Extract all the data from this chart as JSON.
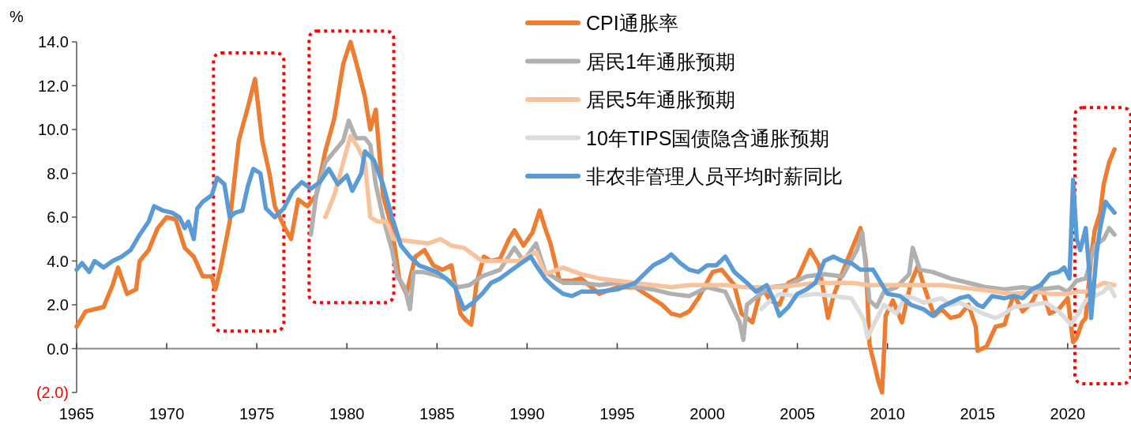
{
  "chart_data": {
    "type": "line",
    "ylabel": "%",
    "xlim": [
      1965,
      2022.9
    ],
    "ylim": [
      -2,
      14
    ],
    "xticks": [
      1965,
      1970,
      1975,
      1980,
      1985,
      1990,
      1995,
      2000,
      2005,
      2010,
      2015,
      2020
    ],
    "yticks": [
      {
        "value": -2,
        "label": "(2.0)"
      },
      {
        "value": 0,
        "label": "0.0"
      },
      {
        "value": 2,
        "label": "2.0"
      },
      {
        "value": 4,
        "label": "4.0"
      },
      {
        "value": 6,
        "label": "6.0"
      },
      {
        "value": 8,
        "label": "8.0"
      },
      {
        "value": 10,
        "label": "10.0"
      },
      {
        "value": 12,
        "label": "12.0"
      },
      {
        "value": 14,
        "label": "14.0"
      }
    ],
    "legend": "top",
    "line_style": "solid",
    "series": [
      {
        "name": "CPI通胀率",
        "color": "#ed7d31",
        "x": [
          1965,
          1965.5,
          1966.5,
          1967,
          1967.3,
          1967.8,
          1968.3,
          1968.5,
          1969,
          1969.5,
          1970,
          1970.5,
          1971,
          1971.5,
          1972,
          1972.5,
          1972.7,
          1973,
          1973.5,
          1974,
          1974.5,
          1974.9,
          1975.3,
          1975.7,
          1976,
          1976.5,
          1976.9,
          1977.3,
          1977.8,
          1978.3,
          1978.8,
          1979.3,
          1979.8,
          1980.2,
          1980.6,
          1981,
          1981.3,
          1981.6,
          1982,
          1982.5,
          1982.9,
          1983.3,
          1983.8,
          1984.3,
          1984.8,
          1985.3,
          1985.8,
          1986.3,
          1986.6,
          1986.9,
          1987.2,
          1987.6,
          1988,
          1988.5,
          1989,
          1989.3,
          1989.8,
          1990.3,
          1990.7,
          1991,
          1991.3,
          1991.8,
          1992.5,
          1993,
          1994,
          1995,
          1996,
          1997.5,
          1998,
          1998.5,
          1999,
          1999.5,
          2000.3,
          2000.8,
          2001.5,
          2001.9,
          2002.5,
          2003,
          2003.5,
          2004,
          2004.5,
          2005,
          2005.7,
          2006.2,
          2006.7,
          2007,
          2007.8,
          2008.5,
          2008.8,
          2009,
          2009.5,
          2009.7,
          2009.9,
          2010.3,
          2010.8,
          2011.3,
          2011.7,
          2012,
          2012.6,
          2013,
          2013.5,
          2014,
          2014.5,
          2014.9,
          2015,
          2015.5,
          2016,
          2016.5,
          2017,
          2017.5,
          2018,
          2018.5,
          2019,
          2019.5,
          2020,
          2020.3,
          2020.5,
          2020.8,
          2021,
          2021.3,
          2021.5,
          2021.8,
          2022,
          2022.3,
          2022.6
        ],
        "values": [
          1.0,
          1.7,
          1.9,
          2.9,
          3.7,
          2.5,
          2.7,
          4.0,
          4.5,
          5.5,
          6.0,
          5.9,
          4.6,
          4.2,
          3.3,
          3.3,
          2.7,
          3.7,
          5.8,
          9.5,
          11.0,
          12.3,
          9.5,
          8.0,
          6.5,
          5.6,
          5.0,
          6.8,
          6.5,
          7.0,
          9.0,
          10.5,
          13.0,
          14.0,
          12.8,
          11.5,
          10.0,
          10.9,
          7.0,
          5.5,
          3.2,
          2.5,
          4.2,
          4.5,
          3.8,
          3.6,
          3.8,
          1.6,
          1.3,
          1.1,
          3.0,
          4.2,
          4.0,
          4.1,
          5.0,
          5.4,
          4.7,
          5.3,
          6.3,
          5.5,
          4.8,
          3.1,
          3.1,
          3.2,
          2.5,
          2.8,
          2.8,
          2.0,
          1.6,
          1.5,
          1.7,
          2.3,
          3.5,
          3.6,
          2.9,
          1.6,
          1.2,
          2.8,
          2.2,
          2.0,
          3.0,
          3.2,
          4.5,
          3.8,
          1.4,
          2.4,
          4.1,
          5.5,
          4.0,
          0.2,
          -1.5,
          -2.0,
          1.5,
          2.2,
          1.2,
          3.0,
          3.8,
          2.9,
          1.5,
          1.8,
          1.4,
          1.5,
          2.0,
          1.0,
          -0.1,
          0.1,
          1.0,
          1.1,
          2.5,
          1.7,
          2.1,
          2.9,
          1.6,
          1.8,
          2.3,
          0.3,
          0.5,
          1.2,
          1.4,
          4.2,
          5.4,
          6.2,
          7.5,
          8.5,
          9.1
        ]
      },
      {
        "name": "居民1年通胀预期",
        "color": "#b0b0b0",
        "x": [
          1978,
          1978.3,
          1978.8,
          1979.3,
          1979.8,
          1980.1,
          1980.5,
          1981,
          1981.3,
          1981.6,
          1982,
          1982.5,
          1982.8,
          1983.2,
          1983.5,
          1983.7,
          1984.2,
          1984.7,
          1985.5,
          1986.2,
          1986.8,
          1987.5,
          1988.5,
          1989.3,
          1989.8,
          1990.5,
          1991,
          1992,
          1993,
          1994,
          1995,
          1996,
          1997,
          1998,
          1999,
          2000,
          2001,
          2001.8,
          2002,
          2002.2,
          2002.8,
          2003.5,
          2004.5,
          2005.5,
          2006.5,
          2007.5,
          2008.3,
          2008.6,
          2009,
          2009.4,
          2009.8,
          2010.5,
          2011.2,
          2011.4,
          2011.8,
          2012.5,
          2013.5,
          2014.5,
          2015.5,
          2016.5,
          2017.5,
          2018.5,
          2019.5,
          2020,
          2020.5,
          2021,
          2021.5,
          2022,
          2022.3,
          2022.6
        ],
        "values": [
          5.2,
          7.0,
          8.5,
          9.0,
          9.5,
          10.4,
          9.6,
          9.6,
          9.3,
          7.5,
          6.0,
          4.5,
          3.3,
          2.8,
          1.8,
          3.5,
          3.5,
          3.4,
          3.2,
          2.8,
          2.9,
          3.3,
          3.6,
          4.6,
          4.0,
          4.8,
          3.5,
          3.0,
          3.0,
          2.9,
          3.0,
          2.8,
          2.7,
          2.5,
          2.4,
          2.8,
          2.6,
          1.2,
          0.4,
          2.0,
          2.4,
          2.8,
          2.9,
          3.3,
          3.4,
          3.3,
          4.5,
          5.3,
          2.2,
          1.9,
          2.6,
          2.8,
          3.4,
          4.6,
          3.6,
          3.5,
          3.2,
          3.0,
          2.8,
          2.7,
          2.8,
          2.7,
          2.8,
          2.6,
          3.1,
          3.2,
          4.7,
          5.0,
          5.5,
          5.2
        ]
      },
      {
        "name": "居民5年通胀预期",
        "color": "#f8c39c",
        "x": [
          1978.8,
          1979.3,
          1979.8,
          1980.2,
          1980.6,
          1981,
          1981.3,
          1981.7,
          1982.2,
          1982.6,
          1983.5,
          1984.5,
          1985.2,
          1985.8,
          1986.5,
          1987,
          1987.5,
          1988.5,
          1989.5,
          1990.5,
          1991,
          1992,
          1993,
          1994,
          1995,
          1996,
          1997,
          1998,
          1999,
          2000,
          2001,
          2002,
          2003,
          2004,
          2005,
          2006,
          2007,
          2008,
          2009,
          2010,
          2011,
          2012,
          2013,
          2014,
          2015,
          2016,
          2017,
          2018,
          2019,
          2020,
          2020.5,
          2021,
          2021.5,
          2022,
          2022.6
        ],
        "values": [
          6.0,
          7.0,
          8.5,
          9.7,
          9.2,
          8.5,
          6.0,
          5.8,
          5.8,
          5.0,
          4.9,
          4.8,
          5.0,
          4.7,
          4.6,
          4.3,
          4.0,
          4.0,
          4.0,
          4.4,
          3.4,
          3.7,
          3.4,
          3.2,
          3.1,
          3.0,
          2.9,
          2.8,
          2.9,
          2.9,
          2.9,
          2.8,
          2.8,
          2.8,
          2.9,
          3.0,
          3.0,
          3.0,
          2.9,
          2.9,
          2.9,
          2.9,
          2.9,
          2.8,
          2.7,
          2.6,
          2.5,
          2.6,
          2.5,
          2.5,
          2.6,
          2.6,
          2.8,
          3.0,
          2.9
        ]
      },
      {
        "name": "10年TIPS国债隐含通胀预期",
        "color": "#dcdcdc",
        "x": [
          2003,
          2003.5,
          2004,
          2005,
          2006,
          2007,
          2008,
          2008.7,
          2008.9,
          2009.3,
          2009.8,
          2010.5,
          2011,
          2011.5,
          2012,
          2013,
          2013.5,
          2014,
          2014.8,
          2015.3,
          2016,
          2016.5,
          2017,
          2018,
          2018.8,
          2019.5,
          2020.2,
          2020.6,
          2021,
          2021.5,
          2022,
          2022.3,
          2022.6
        ],
        "values": [
          1.8,
          2.2,
          2.5,
          2.4,
          2.5,
          2.4,
          2.3,
          1.3,
          0.5,
          1.2,
          2.0,
          1.6,
          2.4,
          2.3,
          2.1,
          2.3,
          2.0,
          2.1,
          1.8,
          1.6,
          1.4,
          1.6,
          1.9,
          2.0,
          2.1,
          1.7,
          1.1,
          1.6,
          2.2,
          2.4,
          2.6,
          2.9,
          2.4
        ]
      },
      {
        "name": "非农非管理人员平均时薪同比",
        "color": "#5b9bd5",
        "x": [
          1965,
          1965.3,
          1965.7,
          1966,
          1966.5,
          1967,
          1967.5,
          1968,
          1968.5,
          1969,
          1969.3,
          1969.8,
          1970.3,
          1970.7,
          1971,
          1971.2,
          1971.5,
          1971.7,
          1972,
          1972.5,
          1972.8,
          1973.2,
          1973.5,
          1973.8,
          1974.2,
          1974.5,
          1974.8,
          1975.2,
          1975.5,
          1976,
          1976.5,
          1977,
          1977.5,
          1978,
          1978.5,
          1979,
          1979.5,
          1980,
          1980.3,
          1980.8,
          1981,
          1981.5,
          1982,
          1982.5,
          1983,
          1983.5,
          1984,
          1985,
          1985.5,
          1986,
          1986.5,
          1987,
          1987.5,
          1988,
          1988.5,
          1989,
          1989.5,
          1990.2,
          1990.5,
          1991,
          1991.5,
          1992,
          1992.5,
          1993,
          1994,
          1995,
          1996,
          1996.5,
          1997,
          1997.7,
          1998,
          1998.5,
          1999,
          1999.5,
          2000,
          2000.5,
          2001,
          2001.5,
          2002.2,
          2002.7,
          2003.3,
          2003.7,
          2004,
          2004.5,
          2005,
          2005.5,
          2006,
          2006.5,
          2007,
          2007.5,
          2008,
          2008.5,
          2009.2,
          2010,
          2010.7,
          2011.3,
          2012,
          2012.5,
          2013,
          2013.5,
          2014,
          2014.5,
          2015,
          2015.3,
          2015.8,
          2016.5,
          2017,
          2017.5,
          2018,
          2018.5,
          2019,
          2019.5,
          2019.8,
          2020.1,
          2020.3,
          2020.5,
          2020.7,
          2021,
          2021.2,
          2021.3,
          2021.6,
          2021.8,
          2022.1,
          2022.3,
          2022.6
        ],
        "values": [
          3.6,
          3.9,
          3.5,
          4.0,
          3.7,
          4.0,
          4.2,
          4.5,
          5.2,
          5.8,
          6.5,
          6.3,
          6.2,
          6.0,
          5.5,
          5.8,
          5.0,
          6.4,
          6.7,
          7.0,
          7.8,
          7.5,
          6.0,
          6.2,
          6.3,
          7.4,
          8.2,
          8.0,
          6.4,
          6.0,
          6.4,
          7.2,
          7.6,
          7.3,
          7.6,
          8.2,
          7.5,
          7.9,
          7.2,
          8.0,
          9.0,
          8.6,
          7.5,
          6.0,
          4.7,
          4.2,
          3.8,
          3.5,
          3.2,
          2.8,
          1.8,
          2.1,
          2.5,
          3.0,
          3.2,
          3.5,
          3.8,
          4.2,
          3.8,
          3.2,
          2.8,
          2.5,
          2.4,
          2.6,
          2.6,
          2.7,
          3.0,
          3.4,
          3.8,
          4.1,
          4.3,
          3.9,
          3.6,
          3.5,
          3.8,
          3.8,
          4.2,
          3.5,
          3.0,
          2.6,
          2.9,
          2.2,
          1.5,
          1.9,
          2.5,
          2.7,
          3.0,
          4.0,
          4.2,
          4.0,
          3.9,
          3.6,
          3.6,
          2.5,
          2.4,
          2.0,
          1.8,
          1.5,
          1.9,
          2.1,
          2.3,
          2.4,
          2.0,
          1.9,
          2.4,
          2.3,
          2.4,
          2.3,
          2.7,
          2.9,
          3.4,
          3.5,
          3.7,
          3.2,
          7.7,
          5.0,
          4.5,
          5.5,
          3.5,
          1.4,
          4.3,
          5.5,
          6.7,
          6.5,
          6.2
        ]
      }
    ]
  }
}
